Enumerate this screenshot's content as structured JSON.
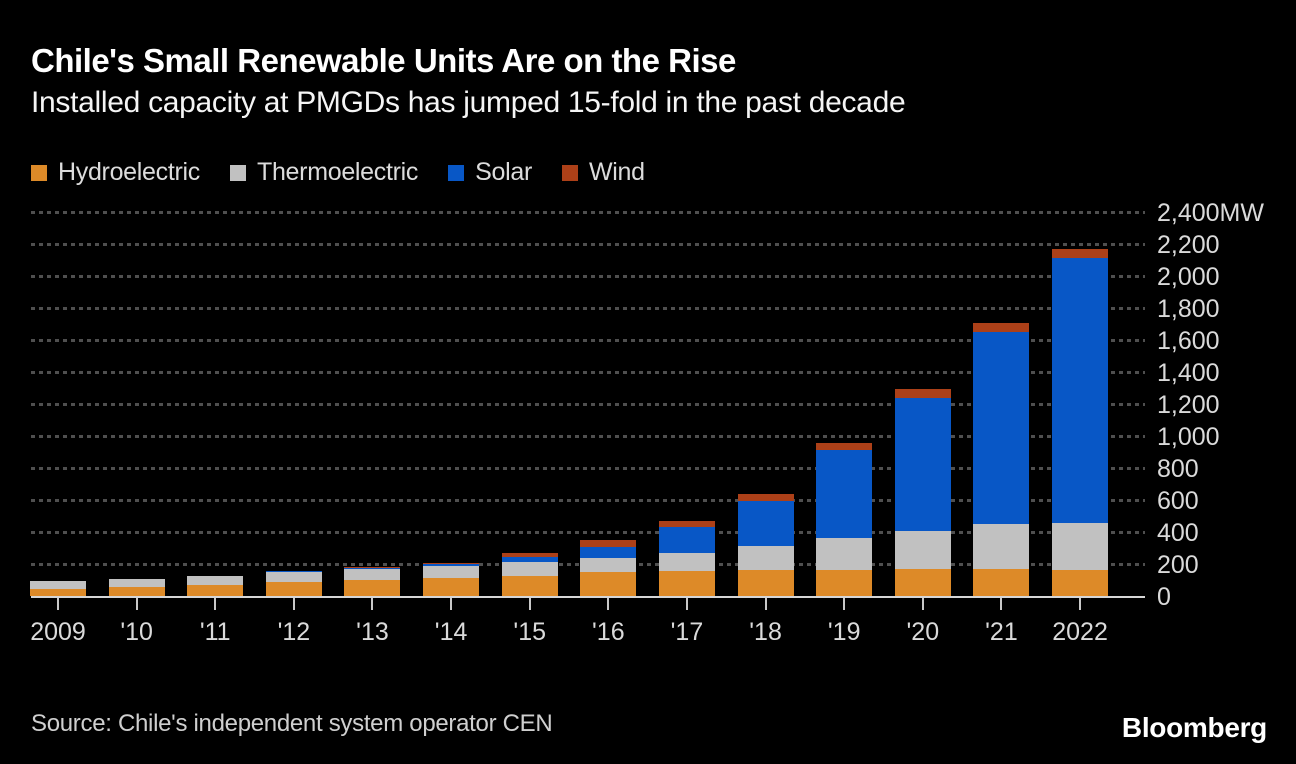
{
  "header": {
    "title": "Chile's Small Renewable Units Are on the Rise",
    "subtitle": "Installed capacity at PMGDs has jumped 15-fold in the past decade"
  },
  "legend": [
    {
      "id": "hydroelectric",
      "label": "Hydroelectric",
      "color": "#DD8A28"
    },
    {
      "id": "thermoelectric",
      "label": "Thermoelectric",
      "color": "#C1C1C1"
    },
    {
      "id": "solar",
      "label": "Solar",
      "color": "#0857C6"
    },
    {
      "id": "wind",
      "label": "Wind",
      "color": "#AC4018"
    }
  ],
  "chart_data": {
    "type": "bar",
    "stacked": true,
    "title": "Chile's Small Renewable Units Are on the Rise",
    "subtitle": "Installed capacity at PMGDs has jumped 15-fold in the past decade",
    "unit": "MW",
    "categories": [
      "2009",
      "'10",
      "'11",
      "'12",
      "'13",
      "'14",
      "'15",
      "'16",
      "'17",
      "'18",
      "'19",
      "'20",
      "'21",
      "2022"
    ],
    "series": [
      {
        "name": "Hydroelectric",
        "color": "#DD8A28",
        "values": [
          45,
          56,
          69,
          87,
          100,
          112,
          125,
          150,
          156,
          162,
          162,
          169,
          169,
          163
        ]
      },
      {
        "name": "Thermoelectric",
        "color": "#C1C1C1",
        "values": [
          50,
          50,
          56,
          63,
          69,
          75,
          87,
          87,
          112,
          150,
          200,
          237,
          281,
          293
        ]
      },
      {
        "name": "Solar",
        "color": "#0857C6",
        "values": [
          0,
          0,
          0,
          6,
          6,
          13,
          31,
          69,
          162,
          281,
          550,
          831,
          1200,
          1656
        ]
      },
      {
        "name": "Wind",
        "color": "#AC4018",
        "values": [
          0,
          0,
          0,
          0,
          6,
          6,
          25,
          44,
          38,
          44,
          44,
          56,
          56,
          56
        ]
      }
    ],
    "ylim": [
      0,
      2400
    ],
    "y_ticks": [
      0,
      200,
      400,
      600,
      800,
      1000,
      1200,
      1400,
      1600,
      1800,
      2000,
      2200,
      2400
    ],
    "y_tick_top_label": "2,400MW",
    "grid": "dotted-horizontal",
    "legend_position": "top-left",
    "axis_label_side": "right"
  },
  "footer": {
    "source": "Source: Chile's independent system operator CEN",
    "brand": "Bloomberg"
  }
}
